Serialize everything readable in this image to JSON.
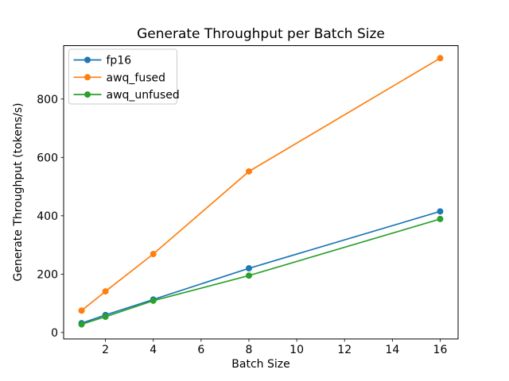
{
  "figure": {
    "background": "#ffffff",
    "spine_color": "#000000",
    "legend_border_color": "#cccccc"
  },
  "chart_data": {
    "type": "line",
    "title": "Generate Throughput per Batch Size",
    "xlabel": "Batch Size",
    "ylabel": "Generate Throughput (tokens/s)",
    "x": [
      1,
      2,
      4,
      8,
      16
    ],
    "series": [
      {
        "name": "fp16",
        "color": "#1f77b4",
        "values": [
          32,
          60,
          113,
          220,
          415
        ]
      },
      {
        "name": "awq_fused",
        "color": "#ff7f0e",
        "values": [
          75,
          141,
          269,
          552,
          940
        ]
      },
      {
        "name": "awq_unfused",
        "color": "#2ca02c",
        "values": [
          28,
          54,
          109,
          195,
          389
        ]
      }
    ],
    "xticks": [
      2,
      4,
      6,
      8,
      10,
      12,
      14,
      16
    ],
    "yticks": [
      0,
      200,
      400,
      600,
      800
    ],
    "xlim": [
      0.25,
      16.75
    ],
    "ylim": [
      -22,
      983
    ],
    "grid": false,
    "marker": "o",
    "legend": {
      "position": "upper left",
      "entries": [
        "fp16",
        "awq_fused",
        "awq_unfused"
      ]
    }
  }
}
